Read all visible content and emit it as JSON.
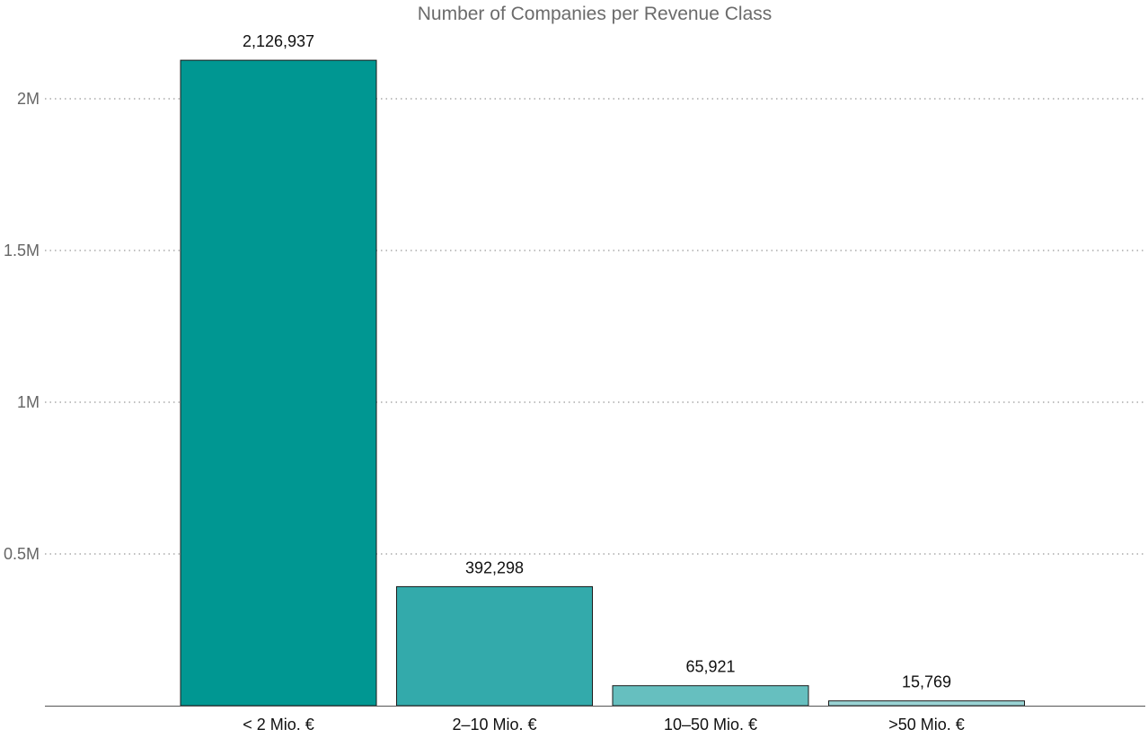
{
  "chart_data": {
    "type": "bar",
    "title": "Number of Companies per Revenue Class",
    "xlabel": "",
    "ylabel": "",
    "categories": [
      "< 2 Mio. €",
      "2–10 Mio. €",
      "10–50 Mio. €",
      ">50 Mio. €"
    ],
    "values": [
      2126937,
      392298,
      65921,
      15769
    ],
    "data_labels": [
      "2,126,937",
      "392,298",
      "65,921",
      "15,769"
    ],
    "ylim": [
      0,
      2100000
    ],
    "yticks": [
      500000,
      1000000,
      1500000,
      2000000
    ],
    "ytick_labels": [
      "0.5M",
      "1M",
      "1.5M",
      "2M"
    ],
    "grid": true,
    "grid_style": "dotted",
    "legend": "none",
    "colors": [
      "#009792",
      "#33aaab",
      "#66bfbf",
      "#99d3d4"
    ],
    "bar_outline_color": "#1a1a1a",
    "grid_color": "#aaaaaa",
    "axis_color": "#555555"
  }
}
